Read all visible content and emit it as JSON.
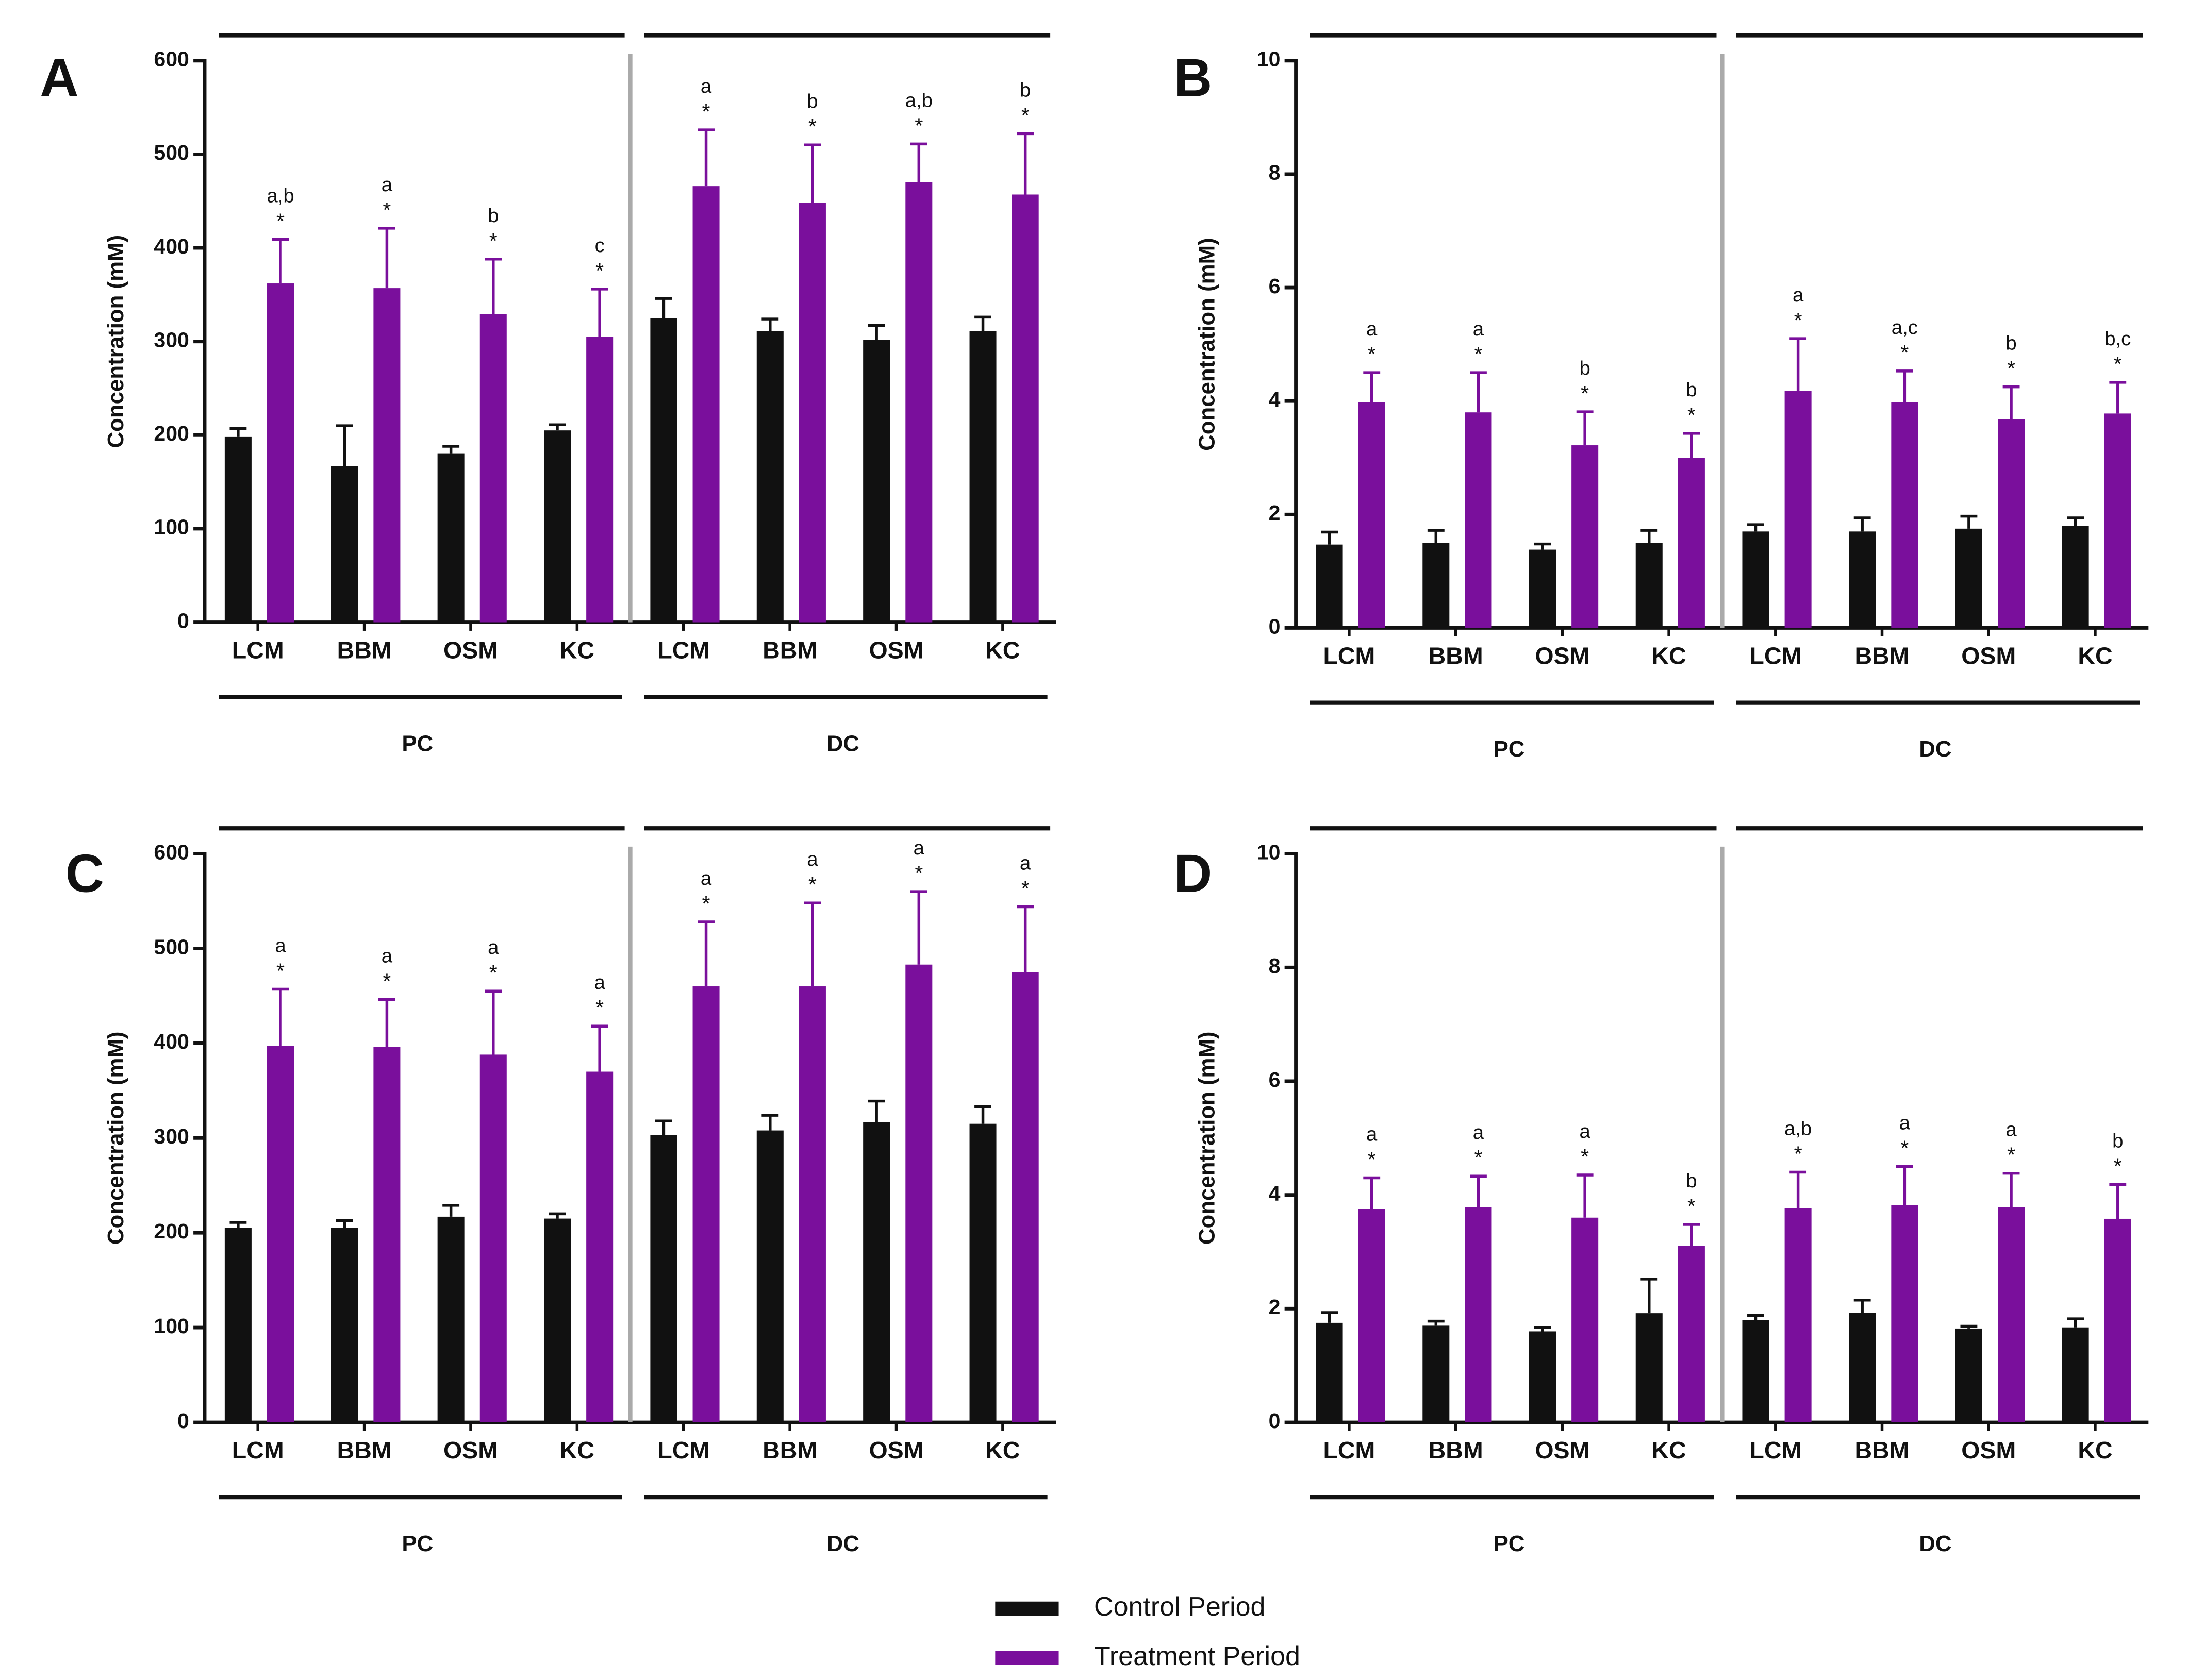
{
  "chart_data": [
    {
      "type": "bar",
      "panel": "A",
      "y_label": "Concentration (mM)",
      "categories": [
        "LCM",
        "BBM",
        "OSM",
        "KC",
        "LCM",
        "BBM",
        "OSM",
        "KC"
      ],
      "groups": [
        "PC",
        "DC"
      ],
      "ylim": [
        0,
        600
      ],
      "yticks": [
        0,
        100,
        200,
        300,
        400,
        500,
        600
      ],
      "series": [
        {
          "name": "Control Period",
          "color": "#111111",
          "values": [
            198,
            167,
            180,
            205,
            325,
            311,
            302,
            311
          ],
          "errors": [
            9,
            43,
            8,
            6,
            21,
            13,
            15,
            15
          ]
        },
        {
          "name": "Treatment Period",
          "color": "#7a0f9c",
          "values": [
            362,
            357,
            329,
            305,
            466,
            448,
            470,
            457
          ],
          "errors": [
            47,
            64,
            59,
            51,
            60,
            62,
            41,
            65
          ],
          "letters": [
            "a,b",
            "a",
            "b",
            "c",
            "a",
            "b",
            "a,b",
            "b"
          ],
          "stars": [
            "*",
            "*",
            "*",
            "*",
            "*",
            "*",
            "*",
            "*"
          ]
        }
      ]
    },
    {
      "type": "bar",
      "panel": "B",
      "y_label": "Concentration (mM)",
      "categories": [
        "LCM",
        "BBM",
        "OSM",
        "KC",
        "LCM",
        "BBM",
        "OSM",
        "KC"
      ],
      "groups": [
        "PC",
        "DC"
      ],
      "ylim": [
        0,
        10
      ],
      "yticks": [
        0,
        2,
        4,
        6,
        8,
        10
      ],
      "series": [
        {
          "color": "#111111",
          "values": [
            1.47,
            1.5,
            1.38,
            1.5,
            1.7,
            1.7,
            1.75,
            1.8
          ],
          "errors": [
            0.22,
            0.22,
            0.1,
            0.22,
            0.12,
            0.24,
            0.22,
            0.14
          ]
        },
        {
          "color": "#7a0f9c",
          "values": [
            3.98,
            3.8,
            3.22,
            3.0,
            4.18,
            3.98,
            3.68,
            3.78
          ],
          "errors": [
            0.52,
            0.7,
            0.59,
            0.43,
            0.92,
            0.55,
            0.57,
            0.55
          ],
          "letters": [
            "a",
            "a",
            "b",
            "b",
            "a",
            "a,c",
            "b",
            "b,c"
          ],
          "stars": [
            "*",
            "*",
            "*",
            "*",
            "*",
            "*",
            "*",
            "*"
          ]
        }
      ]
    },
    {
      "type": "bar",
      "panel": "C",
      "y_label": "Concentration (mM)",
      "categories": [
        "LCM",
        "BBM",
        "OSM",
        "KC",
        "LCM",
        "BBM",
        "OSM",
        "KC"
      ],
      "groups": [
        "PC",
        "DC"
      ],
      "ylim": [
        0,
        600
      ],
      "yticks": [
        0,
        100,
        200,
        300,
        400,
        500,
        600
      ],
      "series": [
        {
          "color": "#111111",
          "values": [
            205,
            205,
            217,
            215,
            303,
            308,
            317,
            315
          ],
          "errors": [
            6,
            8,
            12,
            5,
            15,
            16,
            22,
            18
          ]
        },
        {
          "color": "#7a0f9c",
          "values": [
            397,
            396,
            388,
            370,
            460,
            460,
            483,
            475
          ],
          "errors": [
            60,
            50,
            67,
            48,
            68,
            88,
            77,
            69
          ],
          "letters": [
            "a",
            "a",
            "a",
            "a",
            "a",
            "a",
            "a",
            "a"
          ],
          "stars": [
            "*",
            "*",
            "*",
            "*",
            "*",
            "*",
            "*",
            "*"
          ]
        }
      ]
    },
    {
      "type": "bar",
      "panel": "D",
      "y_label": "Concentration (mM)",
      "categories": [
        "LCM",
        "BBM",
        "OSM",
        "KC",
        "LCM",
        "BBM",
        "OSM",
        "KC"
      ],
      "groups": [
        "PC",
        "DC"
      ],
      "ylim": [
        0,
        10
      ],
      "yticks": [
        0,
        2,
        4,
        6,
        8,
        10
      ],
      "series": [
        {
          "color": "#111111",
          "values": [
            1.75,
            1.7,
            1.6,
            1.92,
            1.8,
            1.93,
            1.65,
            1.67
          ],
          "errors": [
            0.18,
            0.08,
            0.07,
            0.6,
            0.08,
            0.22,
            0.04,
            0.15
          ]
        },
        {
          "color": "#7a0f9c",
          "values": [
            3.75,
            3.78,
            3.6,
            3.1,
            3.77,
            3.82,
            3.78,
            3.58
          ],
          "errors": [
            0.55,
            0.55,
            0.75,
            0.38,
            0.63,
            0.68,
            0.6,
            0.6
          ],
          "letters": [
            "a",
            "a",
            "a",
            "b",
            "a,b",
            "a",
            "a",
            "b"
          ],
          "stars": [
            "*",
            "*",
            "*",
            "*",
            "*",
            "*",
            "*",
            "*"
          ]
        }
      ]
    }
  ]
}
